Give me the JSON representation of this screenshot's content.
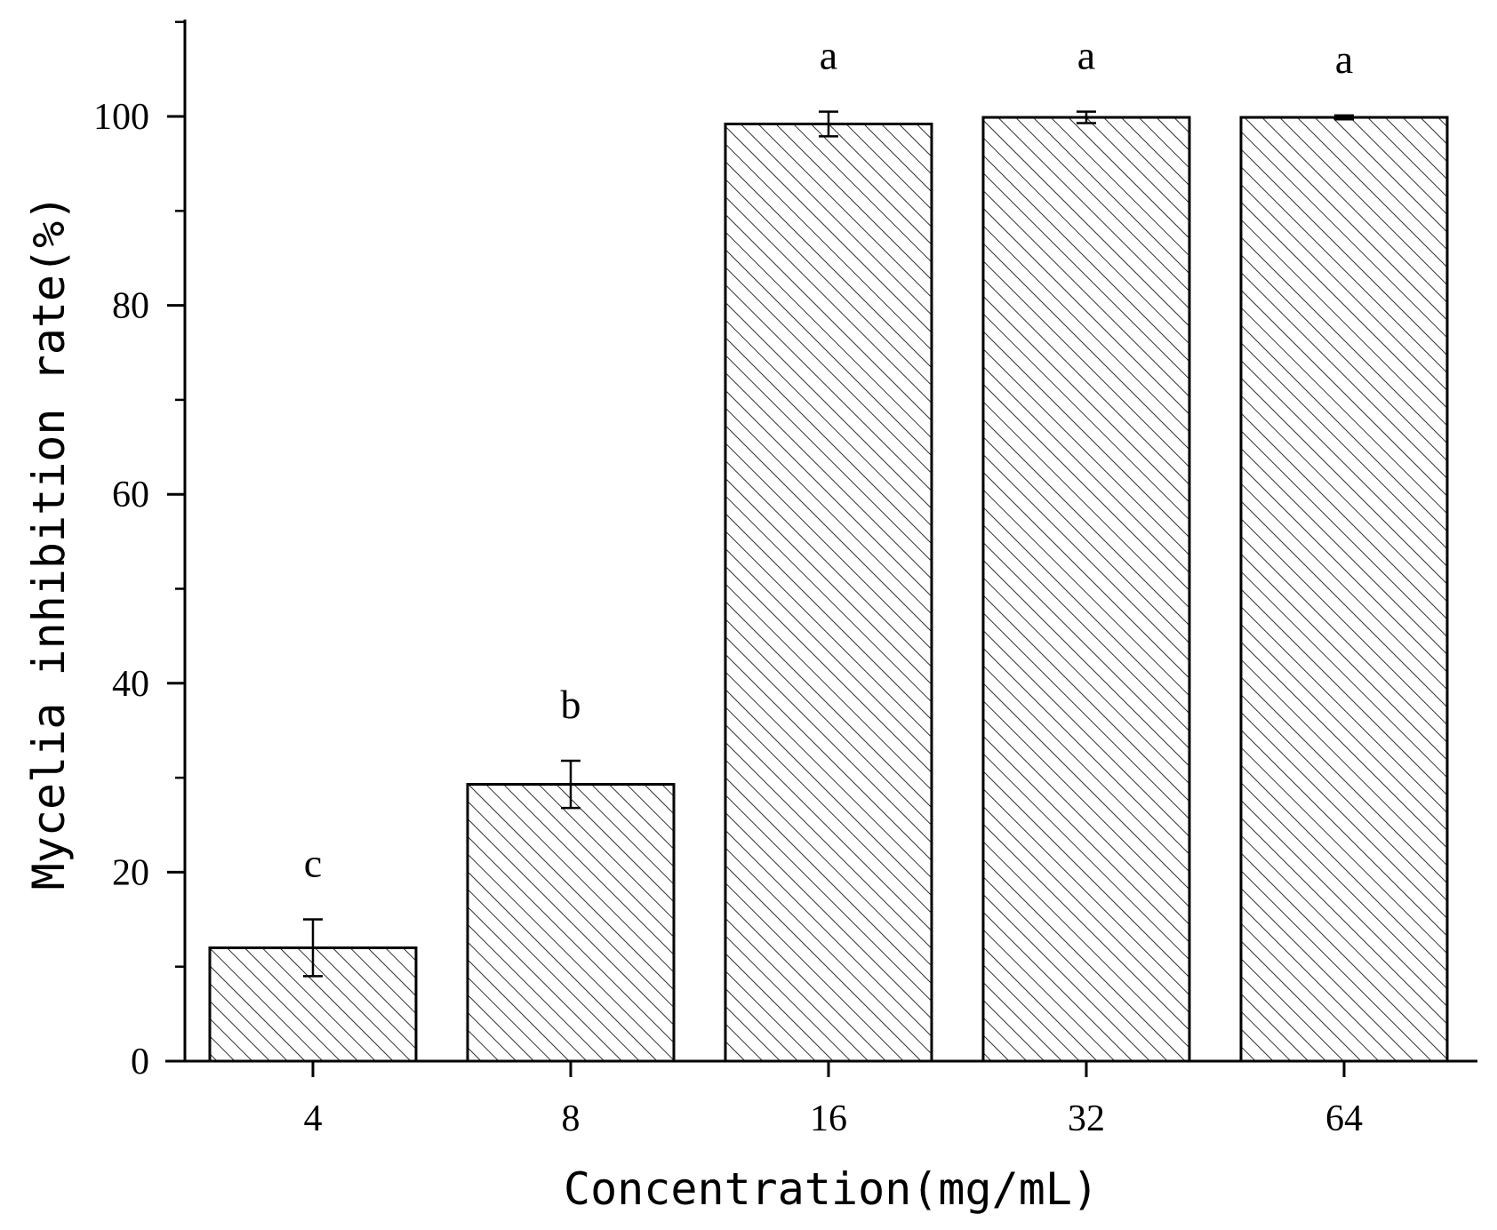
{
  "chart_data": {
    "type": "bar",
    "title": "",
    "xlabel": "Concentration(mg/mL)",
    "ylabel": "Mycelia inhibition rate(%)",
    "categories": [
      "4",
      "8",
      "16",
      "32",
      "64"
    ],
    "values": [
      12.0,
      29.3,
      99.2,
      99.9,
      99.9
    ],
    "error": [
      3.0,
      2.5,
      1.3,
      0.6,
      0.2
    ],
    "significance_labels": [
      "c",
      "b",
      "a",
      "a",
      "a"
    ],
    "ylim": [
      0,
      110
    ],
    "yticks": [
      0,
      20,
      40,
      60,
      80,
      100
    ],
    "grid": false,
    "legend": "none",
    "bar_fill": "diagonal-hatch",
    "colors": {
      "bar_stroke": "#000000",
      "hatch": "#000000",
      "background": "#ffffff"
    }
  }
}
